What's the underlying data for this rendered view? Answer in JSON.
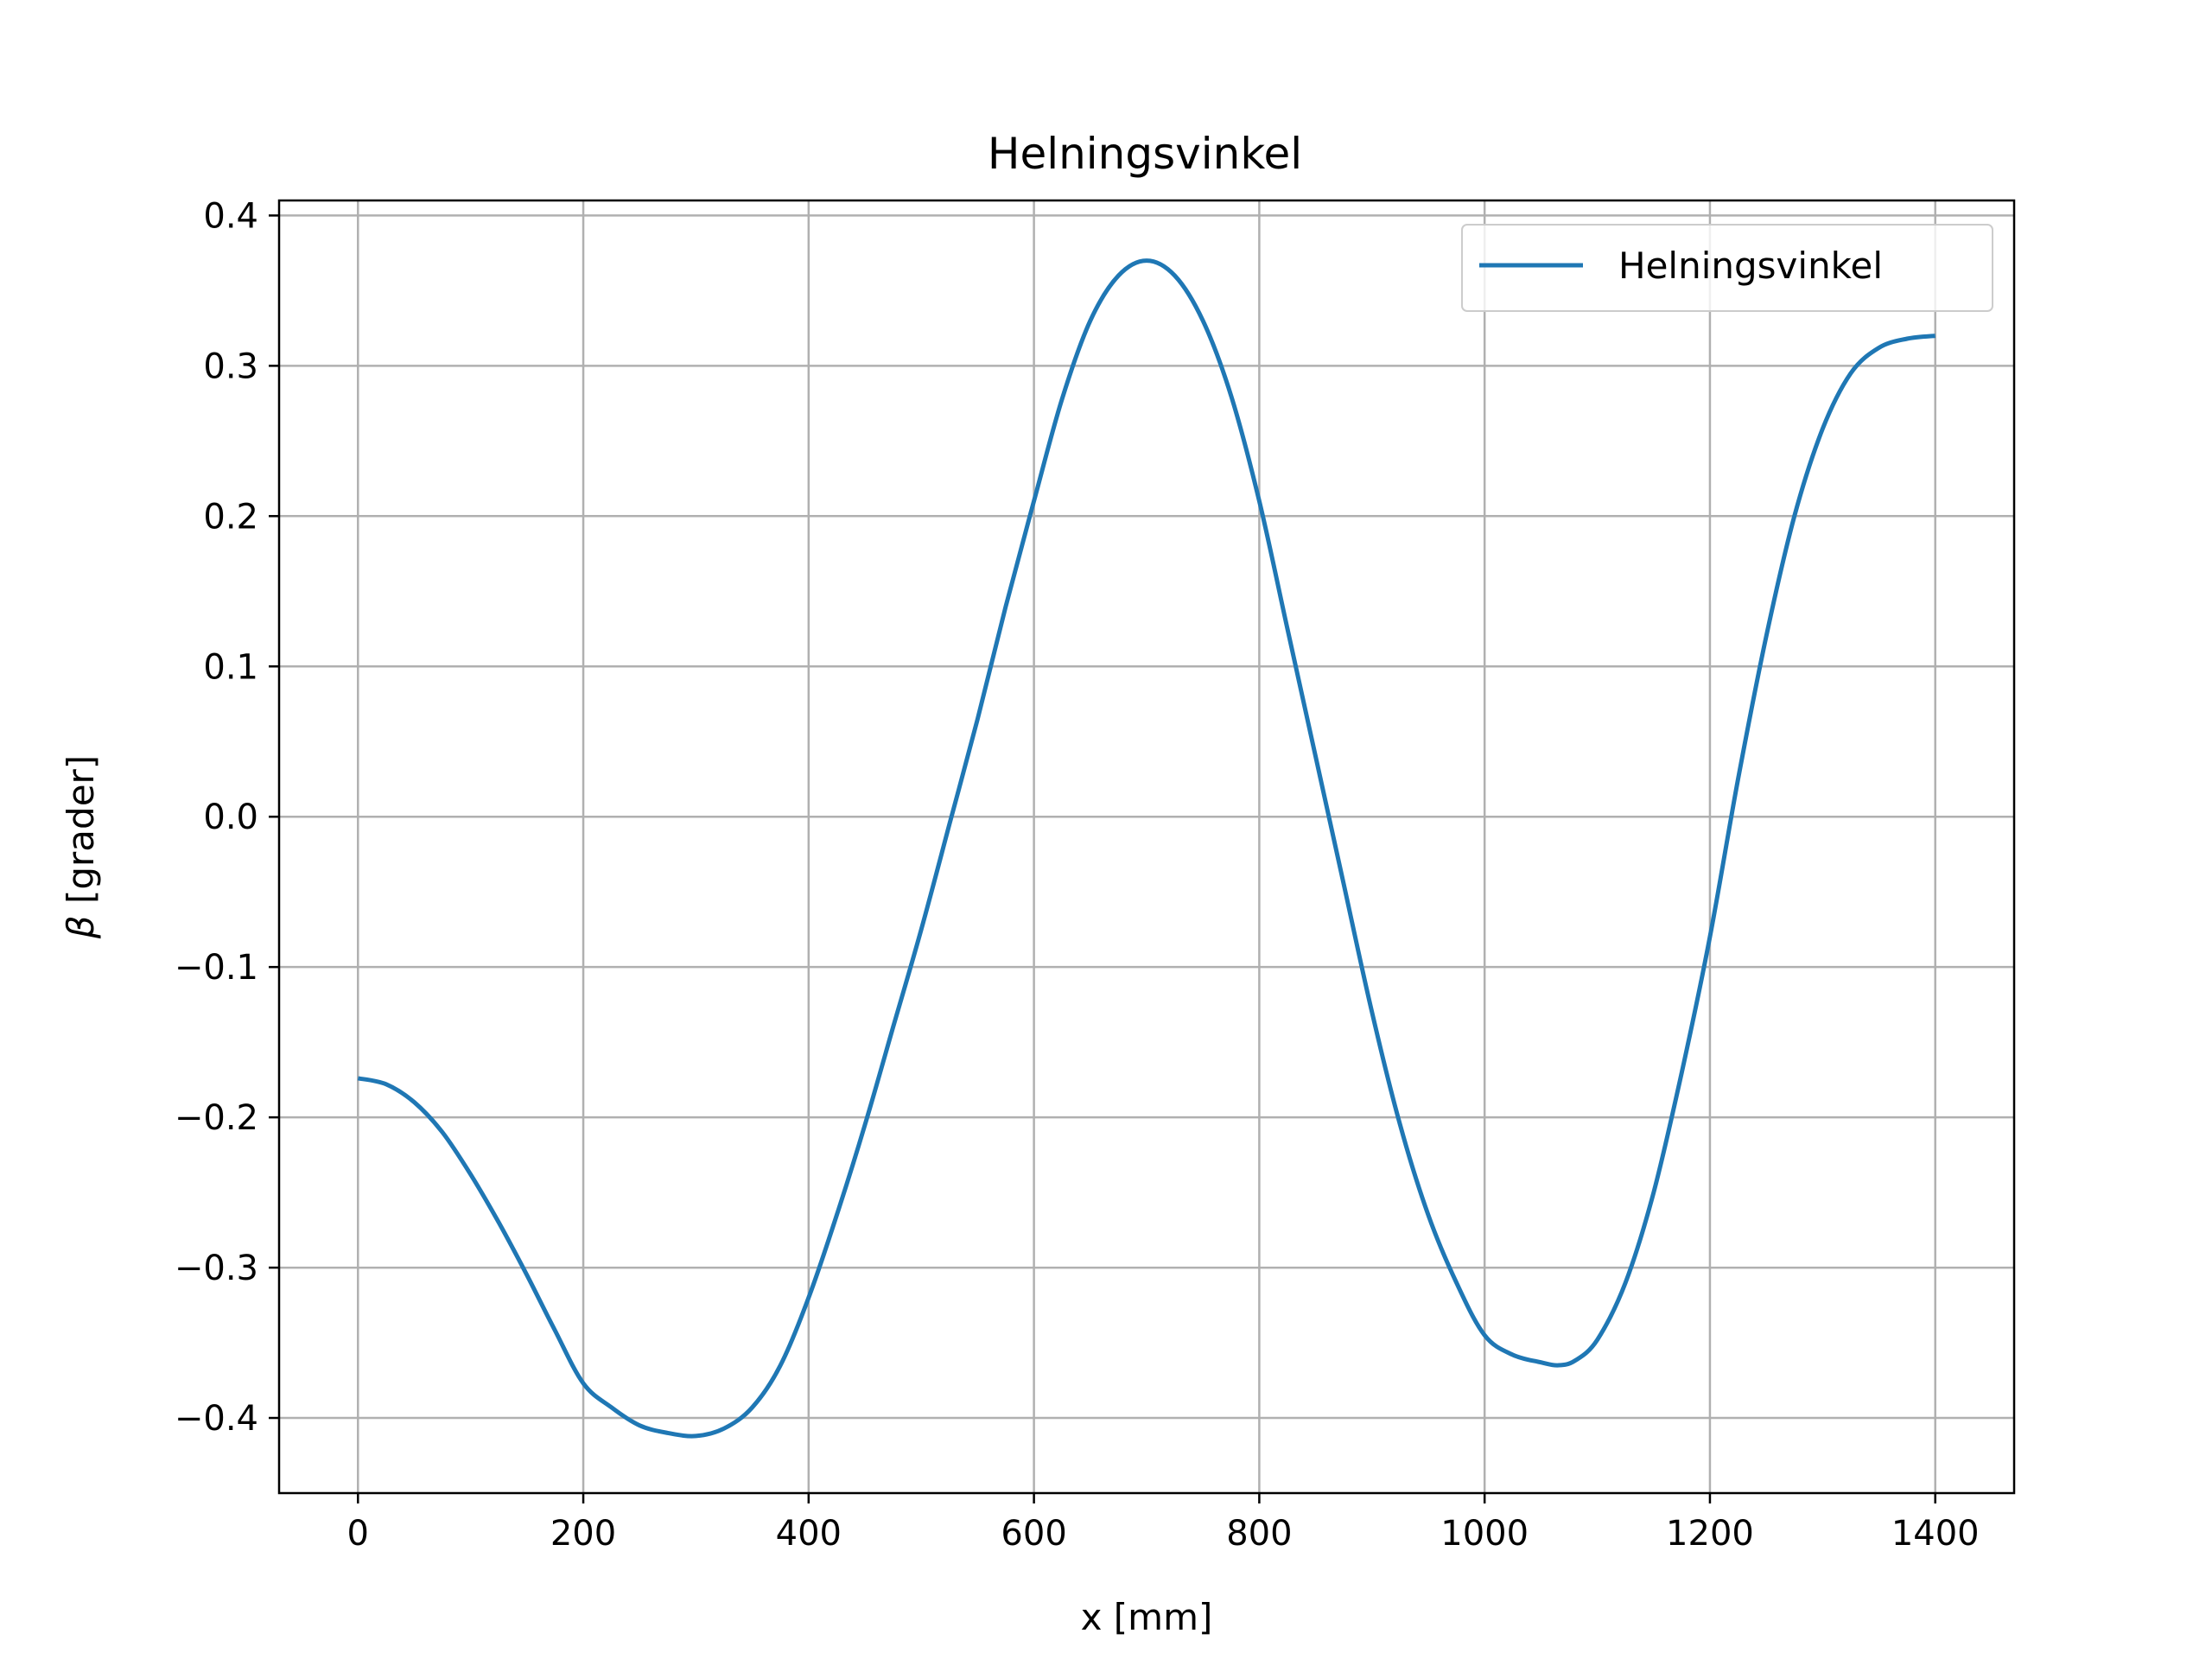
{
  "chart_data": {
    "type": "line",
    "title": "Helningsvinkel",
    "xlabel": "x [mm]",
    "ylabel_symbol": "β",
    "ylabel_unit": "[grader]",
    "xlim": [
      -70,
      1470
    ],
    "ylim": [
      -0.45,
      0.41
    ],
    "grid": true,
    "legend_position": "top-right",
    "x_ticks": [
      0,
      200,
      400,
      600,
      800,
      1000,
      1200,
      1400
    ],
    "x_tick_labels": [
      "0",
      "200",
      "400",
      "600",
      "800",
      "1000",
      "1200",
      "1400"
    ],
    "y_ticks": [
      -0.4,
      -0.3,
      -0.2,
      -0.1,
      0.0,
      0.1,
      0.2,
      0.3,
      0.4
    ],
    "y_tick_labels": [
      "−0.4",
      "−0.3",
      "−0.2",
      "−0.1",
      "0.0",
      "0.1",
      "0.2",
      "0.3",
      "0.4"
    ],
    "series": [
      {
        "name": "Helningsvinkel",
        "color": "#1f77b4",
        "x": [
          0,
          25,
          50,
          75,
          100,
          125,
          150,
          175,
          200,
          225,
          250,
          275,
          300,
          325,
          350,
          375,
          400,
          425,
          450,
          475,
          500,
          525,
          550,
          575,
          600,
          625,
          650,
          675,
          700,
          725,
          750,
          775,
          800,
          825,
          850,
          875,
          900,
          925,
          950,
          975,
          1000,
          1025,
          1050,
          1065,
          1080,
          1100,
          1125,
          1150,
          1175,
          1200,
          1225,
          1250,
          1275,
          1300,
          1325,
          1350,
          1375,
          1400
        ],
        "y": [
          -0.174,
          -0.178,
          -0.19,
          -0.21,
          -0.238,
          -0.27,
          -0.305,
          -0.342,
          -0.377,
          -0.393,
          -0.405,
          -0.41,
          -0.412,
          -0.407,
          -0.393,
          -0.365,
          -0.32,
          -0.265,
          -0.205,
          -0.14,
          -0.075,
          -0.005,
          0.065,
          0.14,
          0.21,
          0.278,
          0.33,
          0.36,
          0.37,
          0.36,
          0.33,
          0.28,
          0.21,
          0.125,
          0.04,
          -0.045,
          -0.13,
          -0.205,
          -0.265,
          -0.31,
          -0.345,
          -0.358,
          -0.363,
          -0.365,
          -0.362,
          -0.348,
          -0.31,
          -0.25,
          -0.17,
          -0.08,
          0.025,
          0.12,
          0.2,
          0.258,
          0.295,
          0.312,
          0.318,
          0.32
        ]
      }
    ]
  }
}
